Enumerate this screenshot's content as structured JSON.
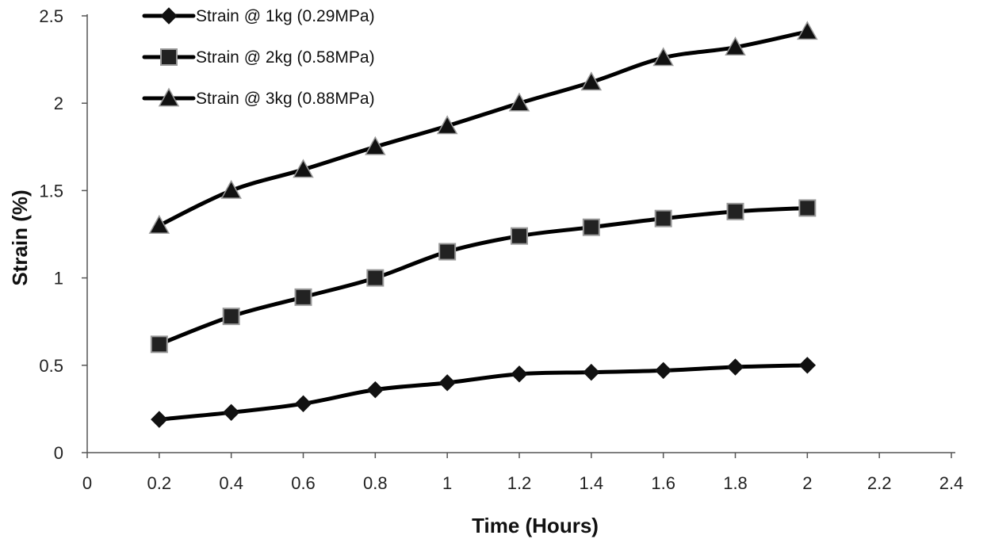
{
  "chart_data": {
    "type": "line",
    "title": "",
    "xlabel": "Time (Hours)",
    "ylabel": "Strain (%)",
    "xlim": [
      0,
      2.4
    ],
    "ylim": [
      0,
      2.5
    ],
    "x_ticks": [
      "0",
      "0.2",
      "0.4",
      "0.6",
      "0.8",
      "1",
      "1.2",
      "1.4",
      "1.6",
      "1.8",
      "2",
      "2.2",
      "2.4"
    ],
    "y_ticks": [
      "0",
      "0.5",
      "1",
      "1.5",
      "2",
      "2.5"
    ],
    "grid": false,
    "legend_position": "top-left",
    "x": [
      0.2,
      0.4,
      0.6,
      0.8,
      1.0,
      1.2,
      1.4,
      1.6,
      1.8,
      2.0
    ],
    "series": [
      {
        "name": "Strain @ 1kg (0.29MPa)",
        "marker": "diamond",
        "color": "#000000",
        "values": [
          0.19,
          0.23,
          0.28,
          0.36,
          0.4,
          0.45,
          0.46,
          0.47,
          0.49,
          0.5
        ]
      },
      {
        "name": "Strain @ 2kg (0.58MPa)",
        "marker": "square",
        "color": "#000000",
        "values": [
          0.62,
          0.78,
          0.89,
          1.0,
          1.15,
          1.24,
          1.29,
          1.34,
          1.38,
          1.4
        ]
      },
      {
        "name": "Strain @ 3kg (0.88MPa)",
        "marker": "triangle",
        "color": "#000000",
        "values": [
          1.3,
          1.5,
          1.62,
          1.75,
          1.87,
          2.0,
          2.12,
          2.26,
          2.32,
          2.41
        ]
      }
    ]
  }
}
